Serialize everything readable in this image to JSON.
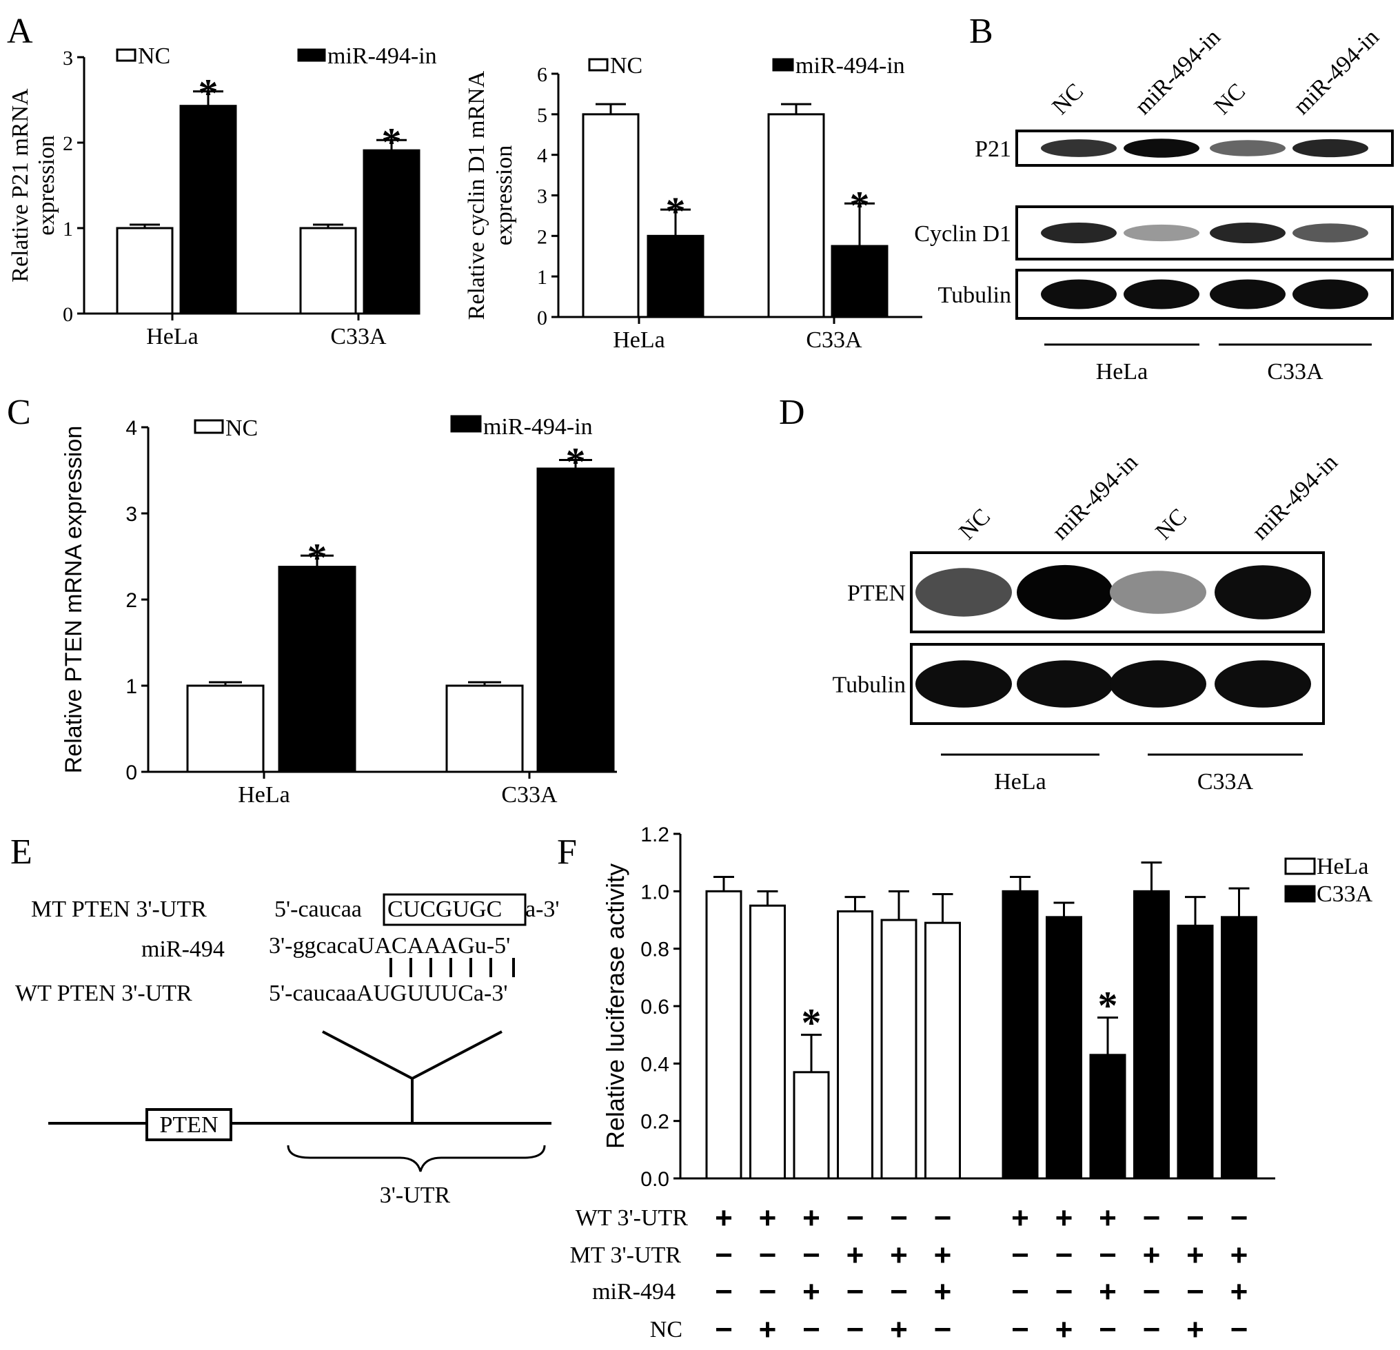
{
  "panels": {
    "A": "A",
    "B": "B",
    "C": "C",
    "D": "D",
    "E": "E",
    "F": "F"
  },
  "colors": {
    "nc": "#ffffff",
    "treated": "#000000",
    "stroke": "#000000"
  },
  "chart_data": [
    {
      "id": "A1",
      "type": "bar",
      "ylabel": "Relative P21 mRNA expression",
      "ylabel_lines": [
        "Relative P21 mRNA",
        "expression"
      ],
      "categories": [
        "HeLa",
        "C33A"
      ],
      "ylim": [
        0,
        3
      ],
      "yticks": [
        "0",
        "1",
        "2",
        "3"
      ],
      "legend": [
        "NC",
        "miR-494-in"
      ],
      "series": [
        {
          "name": "NC",
          "values": [
            1.0,
            1.0
          ],
          "errors": [
            0.04,
            0.04
          ],
          "sig": [
            false,
            false
          ]
        },
        {
          "name": "miR-494-in",
          "values": [
            2.43,
            1.91
          ],
          "errors": [
            0.17,
            0.12
          ],
          "sig": [
            true,
            true
          ]
        }
      ],
      "sig_marker": "*"
    },
    {
      "id": "A2",
      "type": "bar",
      "ylabel": "Relative cyclin D1 mRNA expression",
      "ylabel_lines": [
        "Relative cyclin D1 mRNA",
        "expression"
      ],
      "categories": [
        "HeLa",
        "C33A"
      ],
      "ylim": [
        0,
        6
      ],
      "yticks": [
        "0",
        "1",
        "2",
        "3",
        "4",
        "5",
        "6"
      ],
      "legend": [
        "NC",
        "miR-494-in"
      ],
      "series": [
        {
          "name": "NC",
          "values": [
            5.0,
            5.0
          ],
          "errors": [
            0.25,
            0.25
          ],
          "sig": [
            false,
            false
          ]
        },
        {
          "name": "miR-494-in",
          "values": [
            2.0,
            1.75
          ],
          "errors": [
            0.65,
            1.05
          ],
          "sig": [
            true,
            true
          ]
        }
      ],
      "sig_marker": "*"
    },
    {
      "id": "C",
      "type": "bar",
      "ylabel": "Relative PTEN mRNA expression",
      "categories": [
        "HeLa",
        "C33A"
      ],
      "ylim": [
        0,
        4
      ],
      "yticks": [
        "0",
        "1",
        "2",
        "3",
        "4"
      ],
      "legend": [
        "NC",
        "miR-494-in"
      ],
      "series": [
        {
          "name": "NC",
          "values": [
            1.0,
            1.0
          ],
          "errors": [
            0.04,
            0.04
          ],
          "sig": [
            false,
            false
          ]
        },
        {
          "name": "miR-494-in",
          "values": [
            2.38,
            3.52
          ],
          "errors": [
            0.13,
            0.1
          ],
          "sig": [
            true,
            true
          ]
        }
      ],
      "sig_marker": "*"
    },
    {
      "id": "F",
      "type": "bar",
      "ylabel": "Relative luciferase activity",
      "ylim": [
        0,
        1.2
      ],
      "yticks": [
        "0.0",
        "0.2",
        "0.4",
        "0.6",
        "0.8",
        "1.0",
        "1.2"
      ],
      "legend": [
        "HeLa",
        "C33A"
      ],
      "series": [
        {
          "name": "HeLa",
          "values": [
            1.0,
            0.95,
            0.37,
            0.93,
            0.9,
            0.89
          ],
          "errors": [
            0.05,
            0.05,
            0.13,
            0.05,
            0.1,
            0.1
          ],
          "sig": [
            false,
            false,
            true,
            false,
            false,
            false
          ]
        },
        {
          "name": "C33A",
          "values": [
            1.0,
            0.91,
            0.43,
            1.0,
            0.88,
            0.91
          ],
          "errors": [
            0.05,
            0.05,
            0.13,
            0.1,
            0.1,
            0.1
          ],
          "sig": [
            false,
            false,
            true,
            false,
            false,
            false
          ]
        }
      ],
      "sig_marker": "*",
      "conditions": [
        {
          "label": "WT 3'-UTR",
          "values": [
            "+",
            "+",
            "+",
            "−",
            "−",
            "−",
            "+",
            "+",
            "+",
            "−",
            "−",
            "−"
          ]
        },
        {
          "label": "MT 3'-UTR",
          "values": [
            "−",
            "−",
            "−",
            "+",
            "+",
            "+",
            "−",
            "−",
            "−",
            "+",
            "+",
            "+"
          ]
        },
        {
          "label": "miR-494",
          "values": [
            "−",
            "−",
            "+",
            "−",
            "−",
            "+",
            "−",
            "−",
            "+",
            "−",
            "−",
            "+"
          ]
        },
        {
          "label": "NC",
          "values": [
            "−",
            "+",
            "−",
            "−",
            "+",
            "−",
            "−",
            "+",
            "−",
            "−",
            "+",
            "−"
          ]
        }
      ]
    }
  ],
  "blots": {
    "B": {
      "lanes": [
        "NC",
        "miR-494-in",
        "NC",
        "miR-494-in"
      ],
      "rows": [
        {
          "label": "P21",
          "intensity": [
            0.8,
            0.95,
            0.6,
            0.85
          ]
        },
        {
          "label": "Cyclin D1",
          "intensity": [
            0.85,
            0.4,
            0.85,
            0.65
          ]
        },
        {
          "label": "Tubulin",
          "intensity": [
            0.95,
            0.95,
            0.95,
            0.95
          ]
        }
      ],
      "groups": [
        "HeLa",
        "C33A"
      ]
    },
    "D": {
      "lanes": [
        "NC",
        "miR-494-in",
        "NC",
        "miR-494-in"
      ],
      "rows": [
        {
          "label": "PTEN",
          "intensity": [
            0.7,
            0.98,
            0.45,
            0.95
          ]
        },
        {
          "label": "Tubulin",
          "intensity": [
            0.95,
            0.95,
            0.95,
            0.95
          ]
        }
      ],
      "groups": [
        "HeLa",
        "C33A"
      ]
    }
  },
  "schematic": {
    "mt_label": "MT PTEN 3'-UTR",
    "mt_prefix": "5'-caucaa",
    "mt_box": "CUCGUGC",
    "mt_suffix": "a-3'",
    "mir_label": "miR-494",
    "mir_seq": "3'-ggcacaUACAAAGu-5'",
    "wt_label": "WT PTEN 3'-UTR",
    "wt_seq": "5'-caucaaAUGUUUCa-3'",
    "gene_box": "PTEN",
    "utr_label": "3'-UTR"
  }
}
